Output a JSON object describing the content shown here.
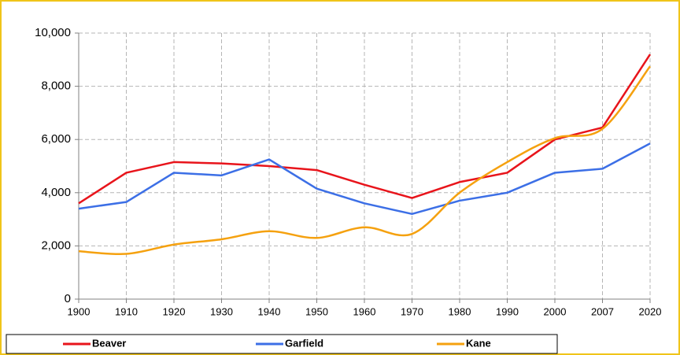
{
  "chart_data": {
    "type": "line",
    "categories": [
      "1900",
      "1910",
      "1920",
      "1930",
      "1940",
      "1950",
      "1960",
      "1970",
      "1980",
      "1990",
      "2000",
      "2007",
      "2020"
    ],
    "series": [
      {
        "name": "Beaver",
        "color": "#e8141b",
        "values": [
          3600,
          4750,
          5150,
          5100,
          5000,
          4850,
          4300,
          3800,
          4400,
          4750,
          6000,
          6450,
          9200
        ]
      },
      {
        "name": "Garfield",
        "color": "#3c6fe6",
        "values": [
          3400,
          3650,
          4750,
          4650,
          5250,
          4150,
          3600,
          3200,
          3700,
          4000,
          4750,
          4900,
          5850
        ]
      },
      {
        "name": "Kane",
        "color": "#f5a10f",
        "smooth": true,
        "values": [
          1800,
          1700,
          2050,
          2250,
          2550,
          2300,
          2700,
          2450,
          4000,
          5150,
          6050,
          6400,
          8750
        ]
      }
    ],
    "ylim": [
      0,
      10000
    ],
    "yticks": [
      0,
      {
        "value": 2000,
        "label": "2,000"
      },
      {
        "value": 4000,
        "label": "4,000"
      },
      {
        "value": 6000,
        "label": "6,000"
      },
      {
        "value": 8000,
        "label": "8,000"
      },
      {
        "value": 10000,
        "label": "10,000"
      }
    ],
    "grid": true,
    "legend": "bottom"
  }
}
